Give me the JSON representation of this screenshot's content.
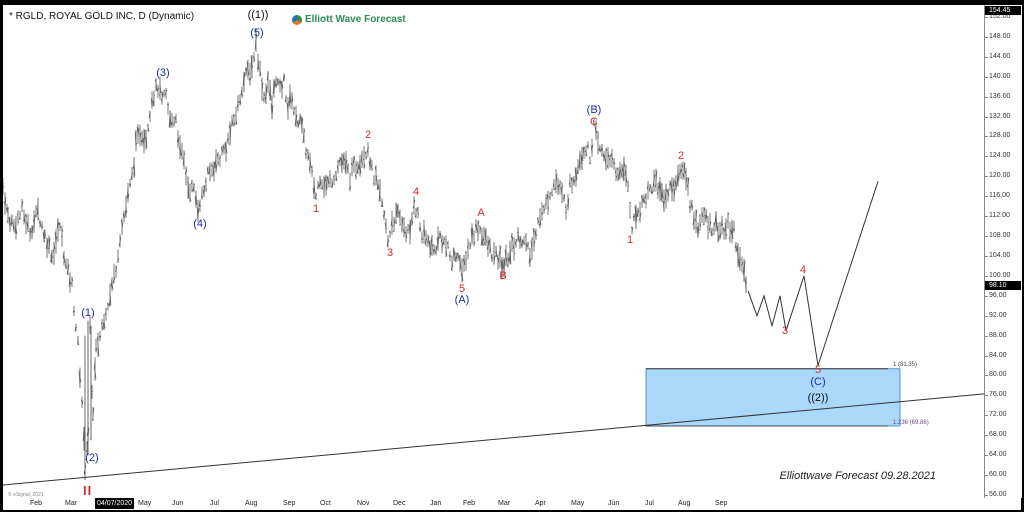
{
  "chart_data": {
    "type": "line",
    "subtype": "ohlc-bar-elliott-wave",
    "title": "* RGLD, ROYAL GOLD INC, D (Dynamic)",
    "brand": "Elliott Wave Forecast",
    "footer": "Elliottwave Forecast  09.28.2021",
    "copyright": "© eSignal, 2021",
    "current_price": "98.10",
    "top_price": "154.45",
    "ylim": [
      56,
      154.45
    ],
    "y_ticks": [
      "152.00",
      "148.00",
      "144.00",
      "140.00",
      "136.00",
      "132.00",
      "128.00",
      "124.00",
      "120.00",
      "116.00",
      "112.00",
      "108.00",
      "104.00",
      "100.00",
      "96.00",
      "92.00",
      "88.00",
      "84.00",
      "80.00",
      "76.00",
      "72.00",
      "68.00",
      "64.00",
      "60.00",
      "56.00"
    ],
    "x_ticks": [
      "Feb",
      "Mar",
      "May",
      "Jun",
      "Jul",
      "Aug",
      "Sep",
      "Oct",
      "Nov",
      "Dec",
      "Jan",
      "Feb",
      "Mar",
      "Apr",
      "May",
      "Jun",
      "Jul",
      "Aug",
      "Sep"
    ],
    "x_cursor_label": "04/07/2020",
    "wave_labels": [
      {
        "label": "((1))",
        "color": "black",
        "x_date": "Aug 2020",
        "price": 152.5
      },
      {
        "label": "(1)",
        "color": "blue",
        "x_date": "Mar 2020",
        "price": 91
      },
      {
        "label": "(2)",
        "color": "blue",
        "x_date": "Mar 2020",
        "price": 62
      },
      {
        "label": "(3)",
        "color": "blue",
        "x_date": "Jun 2020",
        "price": 140
      },
      {
        "label": "(4)",
        "color": "blue",
        "x_date": "Jul 2020",
        "price": 113
      },
      {
        "label": "(5)",
        "color": "blue",
        "x_date": "Aug 2020",
        "price": 148
      },
      {
        "label": "1",
        "color": "red",
        "x_date": "Oct 2020",
        "price": 115
      },
      {
        "label": "2",
        "color": "red",
        "x_date": "Nov 2020",
        "price": 127
      },
      {
        "label": "3",
        "color": "red",
        "x_date": "Dec 2020",
        "price": 106
      },
      {
        "label": "4",
        "color": "red",
        "x_date": "Dec 2020",
        "price": 116
      },
      {
        "label": "5",
        "color": "red",
        "x_date": "Feb 2021",
        "price": 100
      },
      {
        "label": "(A)",
        "color": "blue",
        "x_date": "Feb 2021",
        "price": 100
      },
      {
        "label": "A",
        "color": "red",
        "x_date": "Feb 2021",
        "price": 111
      },
      {
        "label": "B",
        "color": "red",
        "x_date": "Mar 2021",
        "price": 102
      },
      {
        "label": "C",
        "color": "red",
        "x_date": "May 2021",
        "price": 130
      },
      {
        "label": "(B)",
        "color": "blue",
        "x_date": "May 2021",
        "price": 130
      },
      {
        "label": "1",
        "color": "red",
        "x_date": "Jul 2021",
        "price": 110
      },
      {
        "label": "2",
        "color": "red",
        "x_date": "Aug 2021",
        "price": 123
      },
      {
        "label": "3",
        "color": "red",
        "x_date": "Oct 2021 (proj)",
        "price": 91
      },
      {
        "label": "4",
        "color": "red",
        "x_date": "Oct 2021 (proj)",
        "price": 100
      },
      {
        "label": "5",
        "color": "red",
        "x_date": "Nov 2021 (proj)",
        "price": 82
      },
      {
        "label": "(C)",
        "color": "blue",
        "x_date": "Nov 2021 (proj)",
        "price": 82
      },
      {
        "label": "((2))",
        "color": "black",
        "x_date": "Nov 2021 (proj)",
        "price": 82
      },
      {
        "label": "II",
        "color": "red",
        "x_date": "Mar 2020",
        "price": 58
      }
    ],
    "key_points": [
      {
        "x_date": "Jan 2020",
        "price": 118
      },
      {
        "x_date": "Feb 2020",
        "price": 110
      },
      {
        "x_date": "Mar 2020 (2)",
        "price": 59
      },
      {
        "x_date": "Mar 2020 (1)",
        "price": 90
      },
      {
        "x_date": "Jun 2020 (3)",
        "price": 140
      },
      {
        "x_date": "Jul 2020 (4)",
        "price": 114
      },
      {
        "x_date": "Aug 2020 (5)",
        "price": 148
      },
      {
        "x_date": "Oct 2020 1",
        "price": 116
      },
      {
        "x_date": "Nov 2020 2",
        "price": 126
      },
      {
        "x_date": "Dec 2020 3",
        "price": 107
      },
      {
        "x_date": "Dec 2020 4",
        "price": 115
      },
      {
        "x_date": "Feb 2021 5 (A)",
        "price": 100
      },
      {
        "x_date": "Feb 2021 A",
        "price": 111
      },
      {
        "x_date": "Mar 2021 B",
        "price": 102
      },
      {
        "x_date": "May 2021 C (B)",
        "price": 130
      },
      {
        "x_date": "Jul 2021 1",
        "price": 110
      },
      {
        "x_date": "Aug 2021 2",
        "price": 122
      },
      {
        "x_date": "Sep 2021",
        "price": 98.1
      }
    ],
    "projection_path": [
      {
        "price": 98.1
      },
      {
        "price": 94
      },
      {
        "price": 98
      },
      {
        "price": 93
      },
      {
        "price": 97
      },
      {
        "price": 91
      },
      {
        "price": 100
      },
      {
        "price": 82
      },
      {
        "price": 119
      }
    ],
    "fib_zone": {
      "upper_label": "1 (81.35)",
      "upper": 81.35,
      "lower_label": "1.236 (69.86)",
      "lower": 69.86,
      "fill": "#a9d8fb",
      "border": "#3a79b8"
    },
    "trendline": {
      "from": {
        "x_date": "Jan 2020",
        "price": 58
      },
      "to": {
        "x_date": "Oct 2021",
        "price": 76
      }
    },
    "colors": {
      "bars": "#555555",
      "blue_labels": "#1c2ea0",
      "red_labels": "#d42a2a",
      "background": "#ffffff"
    }
  }
}
